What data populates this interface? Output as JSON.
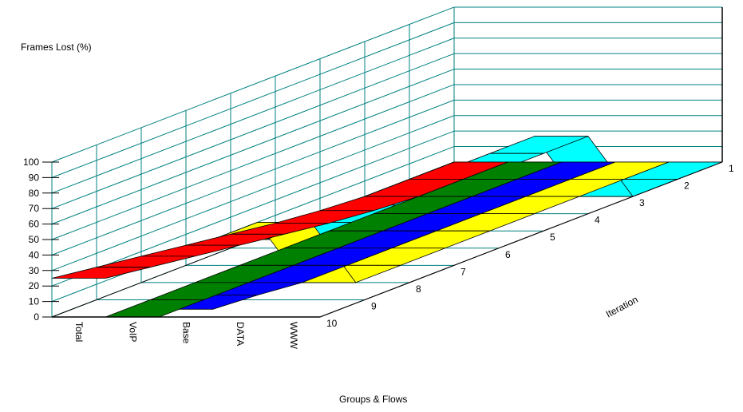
{
  "chart_data": {
    "type": "3d-ribbon",
    "title": "",
    "ylabel": "Frames Lost (%)",
    "xlabel": "Groups & Flows",
    "zlabel": "Iteration",
    "ylim": [
      0,
      100
    ],
    "y_ticks": [
      0,
      10,
      20,
      30,
      40,
      50,
      60,
      70,
      80,
      90,
      100
    ],
    "categories": [
      "Total",
      "VoIP",
      "Base",
      "DATA",
      "WWW"
    ],
    "iterations": [
      1,
      2,
      3,
      4,
      5,
      6,
      7,
      8,
      9,
      10
    ],
    "grid": true,
    "series": [
      {
        "name": "Total",
        "color": "#ff0000",
        "values": [
          0,
          0,
          0,
          2,
          5,
          9,
          13,
          17,
          21,
          25
        ]
      },
      {
        "name": "VoIP",
        "color": "#008000",
        "values": [
          0,
          0,
          0,
          0,
          0,
          0,
          0,
          0,
          0,
          0
        ]
      },
      {
        "name": "Base",
        "color": "#0000ff",
        "values": [
          0,
          0,
          0,
          0,
          0,
          0,
          0,
          0,
          3,
          5
        ]
      },
      {
        "name": "DATA",
        "color": "#ffff00",
        "values": [
          0,
          0,
          0,
          0,
          0,
          0,
          0,
          0,
          50,
          50
        ]
      },
      {
        "name": "WWW",
        "color": "#00ffff",
        "values": [
          0,
          0,
          0,
          50,
          50,
          50,
          50,
          50,
          50,
          50
        ]
      }
    ]
  },
  "colors": {
    "grid": "#008080",
    "axis": "#000000",
    "outline": "#000000"
  }
}
